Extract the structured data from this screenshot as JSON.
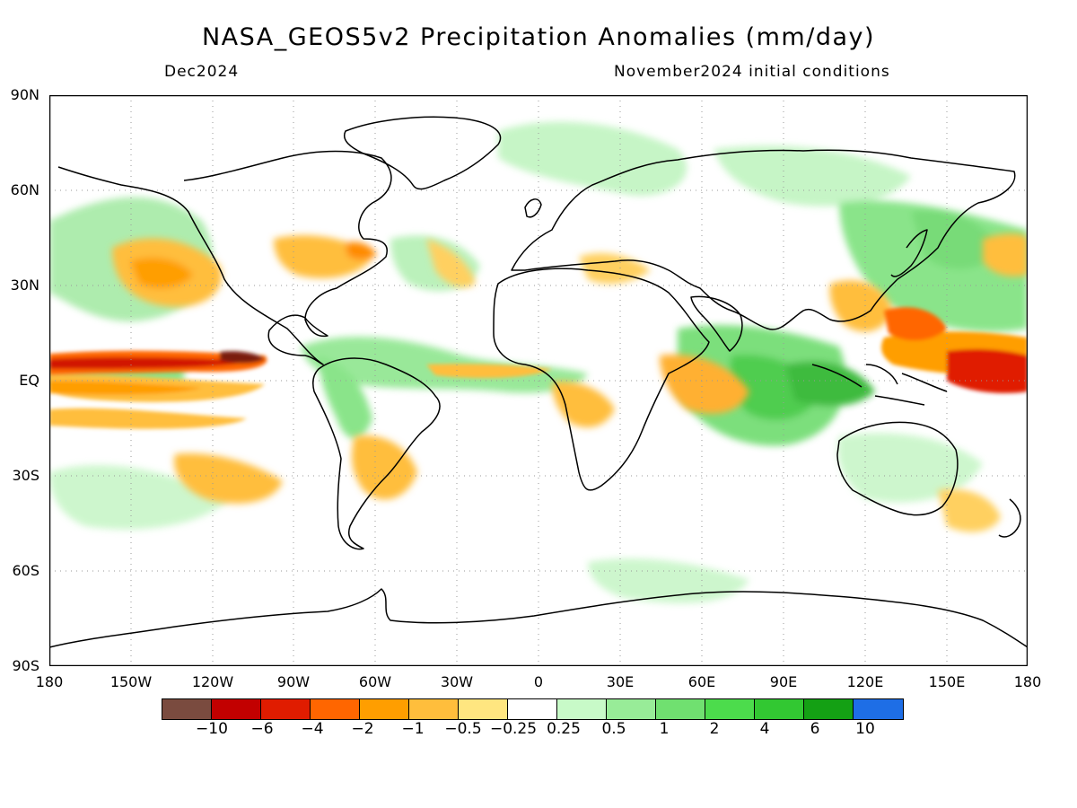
{
  "header": {
    "title": "NASA_GEOS5v2 Precipitation Anomalies (mm/day)",
    "valid_month": "Dec2024",
    "init_conditions": "November2024 initial conditions"
  },
  "axes": {
    "lat_labels": [
      "90N",
      "60N",
      "30N",
      "EQ",
      "30S",
      "60S",
      "90S"
    ],
    "lon_labels": [
      "180",
      "150W",
      "120W",
      "90W",
      "60W",
      "30W",
      "0",
      "30E",
      "60E",
      "90E",
      "120E",
      "150E",
      "180"
    ]
  },
  "colorbar": {
    "colors": [
      "#7a4b3f",
      "#c20000",
      "#e01c00",
      "#ff6600",
      "#ff9e00",
      "#ffbe3c",
      "#ffe680",
      "#ffffff",
      "#c8fac8",
      "#98ec98",
      "#70e070",
      "#4cdc4c",
      "#32c832",
      "#14a014",
      "#1e6ee6"
    ],
    "labels": [
      "−10",
      "−6",
      "−4",
      "−2",
      "−1",
      "−0.5",
      "−0.25",
      "0.25",
      "0.5",
      "1",
      "2",
      "4",
      "6",
      "10"
    ]
  },
  "map": {
    "projection": "cylindrical equidistant",
    "extent": {
      "lon": [
        -180,
        180
      ],
      "lat": [
        -90,
        90
      ]
    },
    "grid": "dotted 30°",
    "field": "precipitation anomaly (mm/day)",
    "features": [
      {
        "name": "equatorial-pacific-dry-band",
        "lon": [
          -180,
          -100
        ],
        "lat": [
          2,
          7
        ],
        "anomaly": -8
      },
      {
        "name": "central-pacific-dry",
        "lon": [
          -180,
          -90
        ],
        "lat": [
          -10,
          0
        ],
        "anomaly": -2
      },
      {
        "name": "western-pacific-dry",
        "lon": [
          130,
          180
        ],
        "lat": [
          -8,
          6
        ],
        "anomaly": -6
      },
      {
        "name": "philippine-sea-dry",
        "lon": [
          125,
          160
        ],
        "lat": [
          8,
          20
        ],
        "anomaly": -3
      },
      {
        "name": "indian-ocean-wet",
        "lon": [
          40,
          110
        ],
        "lat": [
          -25,
          10
        ],
        "anomaly": 2
      },
      {
        "name": "maritime-continent-wet",
        "lon": [
          95,
          130
        ],
        "lat": [
          -10,
          5
        ],
        "anomaly": 4
      },
      {
        "name": "atlantic-itcz-wet",
        "lon": [
          -50,
          10
        ],
        "lat": [
          2,
          10
        ],
        "anomaly": 1
      },
      {
        "name": "north-pacific-dry",
        "lon": [
          -160,
          -120
        ],
        "lat": [
          25,
          45
        ],
        "anomaly": -1
      },
      {
        "name": "south-pacific-dry",
        "lon": [
          -140,
          -100
        ],
        "lat": [
          -40,
          -20
        ],
        "anomaly": -1
      },
      {
        "name": "amazon-wet",
        "lon": [
          -75,
          -40
        ],
        "lat": [
          -15,
          5
        ],
        "anomaly": 1
      }
    ]
  }
}
